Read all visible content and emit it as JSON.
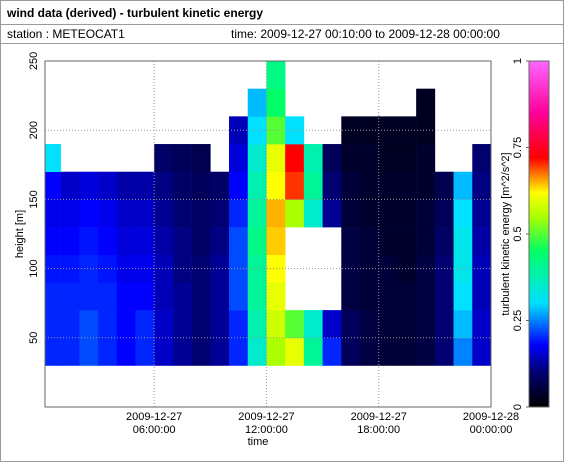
{
  "chart_data": {
    "type": "heatmap",
    "title": "wind data (derived) - turbulent kinetic energy",
    "station": "station : METEOCAT1",
    "subtitle": "time: 2009-12-27 00:10:00 to 2009-12-28 00:00:00",
    "x_label": "time",
    "y_label": "height [m]",
    "colorbar_label": "turbulent kinetic energy [m^2/s^2]",
    "xbins": [
      "2009-12-27 00:10:00",
      "2009-12-27 01:00:00",
      "2009-12-27 02:00:00",
      "2009-12-27 03:00:00",
      "2009-12-27 04:00:00",
      "2009-12-27 05:00:00",
      "2009-12-27 06:00:00",
      "2009-12-27 07:00:00",
      "2009-12-27 08:00:00",
      "2009-12-27 09:00:00",
      "2009-12-27 10:00:00",
      "2009-12-27 11:00:00",
      "2009-12-27 12:00:00",
      "2009-12-27 13:00:00",
      "2009-12-27 14:00:00",
      "2009-12-27 15:00:00",
      "2009-12-27 16:00:00",
      "2009-12-27 17:00:00",
      "2009-12-27 18:00:00",
      "2009-12-27 19:00:00",
      "2009-12-27 20:00:00",
      "2009-12-27 21:00:00",
      "2009-12-27 22:00:00",
      "2009-12-27 23:00:00",
      "2009-12-28 00:00:00"
    ],
    "ybins": [
      30,
      50,
      70,
      90,
      110,
      130,
      150,
      170,
      190,
      210,
      230,
      250
    ],
    "z": [
      [
        0.2,
        0.2,
        0.22,
        0.2,
        0.18,
        0.2,
        0.15,
        0.12,
        0.1,
        0.12,
        0.2,
        0.35,
        0.55,
        0.6,
        0.4,
        0.2,
        0.08,
        0.06,
        0.05,
        0.05,
        0.06,
        0.1,
        0.25,
        0.15
      ],
      [
        0.2,
        0.2,
        0.22,
        0.2,
        0.18,
        0.2,
        0.15,
        0.12,
        0.1,
        0.12,
        0.2,
        0.38,
        0.58,
        0.5,
        0.35,
        0.15,
        0.08,
        0.06,
        0.05,
        0.05,
        0.06,
        0.1,
        0.28,
        0.15
      ],
      [
        0.2,
        0.2,
        0.2,
        0.2,
        0.18,
        0.18,
        0.14,
        0.12,
        0.1,
        0.12,
        0.22,
        0.4,
        0.6,
        null,
        null,
        null,
        0.06,
        0.05,
        0.05,
        0.05,
        0.06,
        0.1,
        0.3,
        0.14
      ],
      [
        0.19,
        0.19,
        0.2,
        0.19,
        0.17,
        0.17,
        0.14,
        0.11,
        0.1,
        0.12,
        0.22,
        0.4,
        0.62,
        null,
        null,
        null,
        0.06,
        0.05,
        0.05,
        0.04,
        0.06,
        0.1,
        0.32,
        0.14
      ],
      [
        0.18,
        0.18,
        0.19,
        0.18,
        0.16,
        0.16,
        0.13,
        0.11,
        0.09,
        0.11,
        0.22,
        0.42,
        0.64,
        null,
        null,
        null,
        0.06,
        0.05,
        0.04,
        0.04,
        0.05,
        0.09,
        0.32,
        0.13
      ],
      [
        0.17,
        0.17,
        0.18,
        0.17,
        0.15,
        0.15,
        0.12,
        0.1,
        0.09,
        0.1,
        0.2,
        0.4,
        0.65,
        0.55,
        0.35,
        0.12,
        0.05,
        0.04,
        0.04,
        0.04,
        0.05,
        0.08,
        0.3,
        0.12
      ],
      [
        0.18,
        0.15,
        0.16,
        0.15,
        0.13,
        0.13,
        0.11,
        0.09,
        0.08,
        0.09,
        0.18,
        0.38,
        0.62,
        0.7,
        0.4,
        0.1,
        0.05,
        0.04,
        0.04,
        0.04,
        0.04,
        0.07,
        0.28,
        0.11
      ],
      [
        0.3,
        null,
        null,
        null,
        null,
        null,
        0.09,
        0.08,
        0.07,
        null,
        0.16,
        0.35,
        0.6,
        0.72,
        0.38,
        0.08,
        0.04,
        0.04,
        0.03,
        0.03,
        0.04,
        null,
        null,
        0.1
      ],
      [
        null,
        null,
        null,
        null,
        null,
        null,
        null,
        null,
        null,
        null,
        0.14,
        0.3,
        0.5,
        0.3,
        null,
        null,
        0.03,
        0.03,
        0.03,
        0.03,
        0.03,
        null,
        null,
        null
      ],
      [
        null,
        null,
        null,
        null,
        null,
        null,
        null,
        null,
        null,
        null,
        null,
        0.28,
        0.45,
        null,
        null,
        null,
        null,
        null,
        null,
        null,
        0.03,
        null,
        null,
        null
      ],
      [
        null,
        null,
        null,
        null,
        null,
        null,
        null,
        null,
        null,
        null,
        null,
        null,
        0.42,
        null,
        null,
        null,
        null,
        null,
        null,
        null,
        null,
        null,
        null,
        null
      ]
    ],
    "xlim": [
      "2009-12-27 00:10:00",
      "2009-12-28 00:00:00"
    ],
    "xticks": [
      {
        "value": "2009-12-27 06:00:00",
        "label": "2009-12-27\n06:00:00"
      },
      {
        "value": "2009-12-27 12:00:00",
        "label": "2009-12-27\n12:00:00"
      },
      {
        "value": "2009-12-27 18:00:00",
        "label": "2009-12-27\n18:00:00"
      },
      {
        "value": "2009-12-28 00:00:00",
        "label": "2009-12-28\n00:00:00"
      }
    ],
    "ylim": [
      0,
      250
    ],
    "yticks": [
      50,
      100,
      150,
      200,
      250
    ],
    "zlim": [
      0,
      1
    ],
    "zticks": [
      0,
      0.25,
      0.5,
      0.75,
      1
    ],
    "colorscale": [
      [
        0,
        "#000000"
      ],
      [
        0.1,
        "#000070"
      ],
      [
        0.18,
        "#0000ff"
      ],
      [
        0.3,
        "#00e0ff"
      ],
      [
        0.45,
        "#00ff66"
      ],
      [
        0.55,
        "#aaff00"
      ],
      [
        0.62,
        "#ffff00"
      ],
      [
        0.72,
        "#ff0000"
      ],
      [
        0.85,
        "#ff0099"
      ],
      [
        1,
        "#ff66ff"
      ]
    ],
    "grid": true
  }
}
